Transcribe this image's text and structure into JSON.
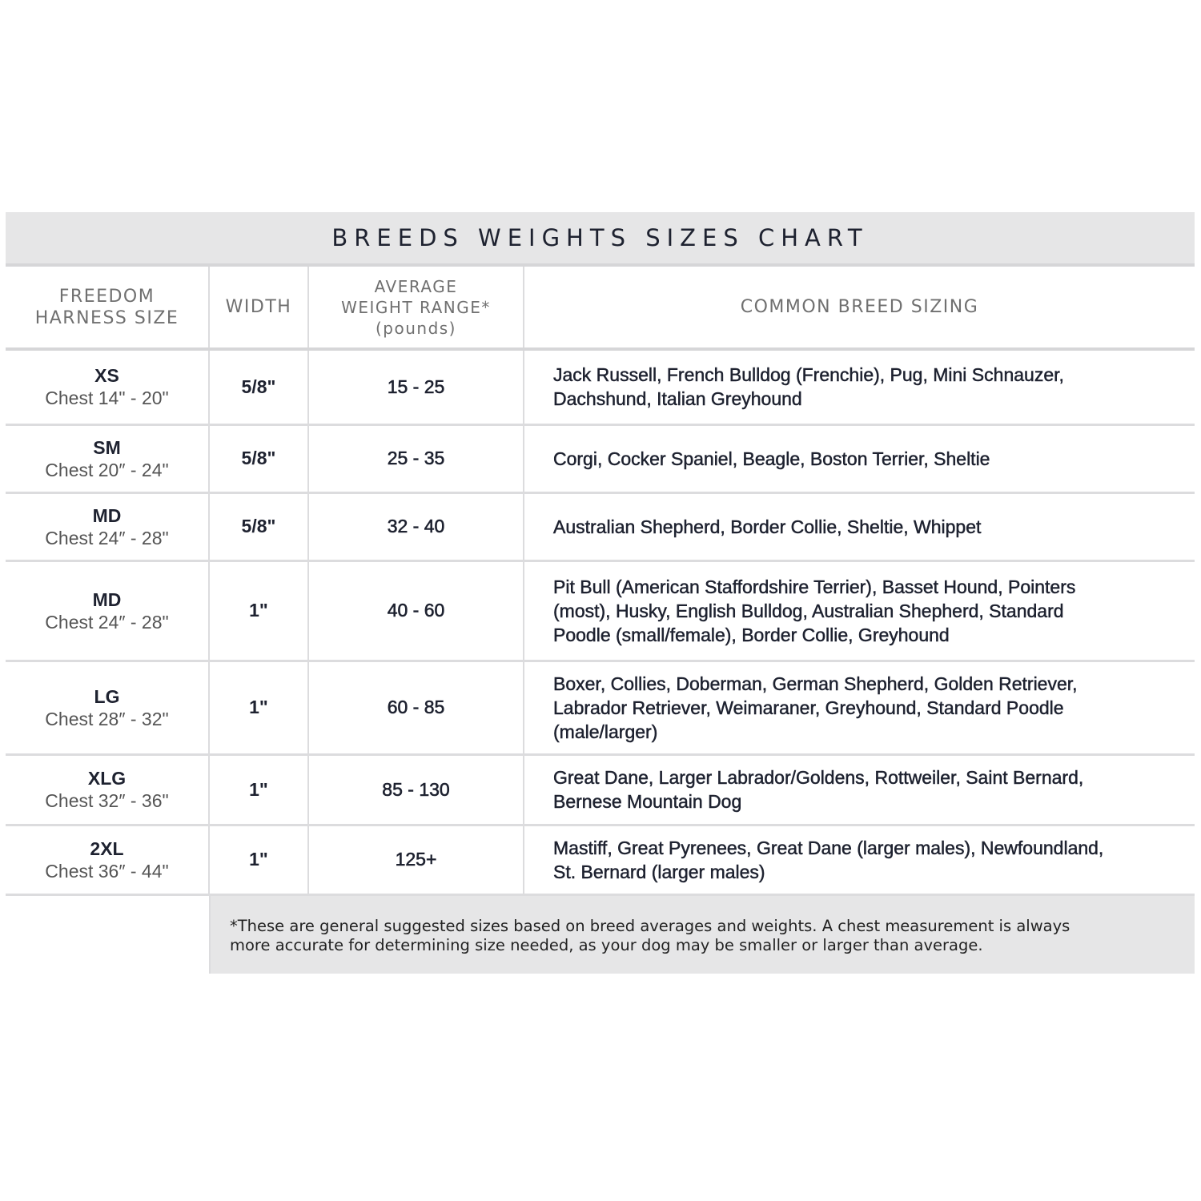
{
  "title": "BREEDS WEIGHTS SIZES CHART",
  "headers": {
    "size": [
      "FREEDOM",
      "HARNESS SIZE"
    ],
    "width": "WIDTH",
    "weight": [
      "AVERAGE",
      "WEIGHT RANGE*",
      "(pounds)"
    ],
    "breeds": "COMMON BREED SIZING"
  },
  "rows": [
    {
      "size": "XS",
      "chest": "Chest 14\" - 20\"",
      "width": "5/8\"",
      "weight": "15 - 25",
      "breeds": [
        "Jack Russell, French Bulldog (Frenchie), Pug, Mini Schnauzer,",
        "Dachshund, Italian Greyhound"
      ]
    },
    {
      "size": "SM",
      "chest": "Chest 20″ - 24\"",
      "width": "5/8\"",
      "weight": "25 - 35",
      "breeds": [
        "Corgi, Cocker Spaniel, Beagle, Boston Terrier, Sheltie"
      ]
    },
    {
      "size": "MD",
      "chest": "Chest 24″ - 28\"",
      "width": "5/8\"",
      "weight": "32 - 40",
      "breeds": [
        "Australian Shepherd, Border Collie, Sheltie, Whippet"
      ]
    },
    {
      "size": "MD",
      "chest": "Chest 24″ - 28\"",
      "width": "1\"",
      "weight": "40 - 60",
      "breeds": [
        "Pit Bull (American Staffordshire Terrier), Basset Hound, Pointers",
        "(most), Husky, English Bulldog, Australian Shepherd, Standard",
        "Poodle (small/female), Border Collie, Greyhound"
      ]
    },
    {
      "size": "LG",
      "chest": "Chest 28″ - 32\"",
      "width": "1\"",
      "weight": "60 - 85",
      "breeds": [
        "Boxer, Collies, Doberman, German Shepherd, Golden Retriever,",
        "Labrador Retriever, Weimaraner, Greyhound, Standard Poodle",
        "(male/larger)"
      ]
    },
    {
      "size": "XLG",
      "chest": "Chest 32″ - 36\"",
      "width": "1\"",
      "weight": "85 - 130",
      "breeds": [
        "Great Dane, Larger Labrador/Goldens, Rottweiler, Saint Bernard,",
        "Bernese Mountain Dog"
      ]
    },
    {
      "size": "2XL",
      "chest": "Chest 36″ - 44\"",
      "width": "1\"",
      "weight": "125+",
      "breeds": [
        "Mastiff, Great Pyrenees, Great Dane (larger males), Newfoundland,",
        "St. Bernard (larger males)"
      ]
    }
  ],
  "footnote": [
    "*These are general suggested sizes based on breed averages and weights.  A chest measurement is always",
    "more accurate for determining size needed, as your dog may be smaller or larger than average."
  ]
}
